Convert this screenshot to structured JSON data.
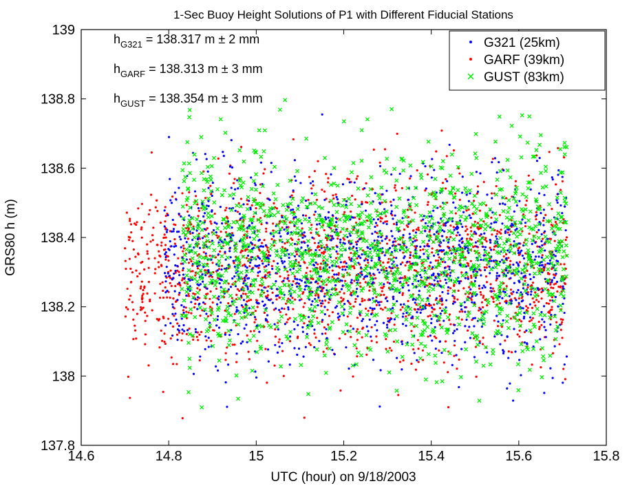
{
  "chart_data": {
    "type": "scatter",
    "title": "1-Sec Buoy Height Solutions of P1 with Different Fiducial Stations",
    "xlabel": "UTC (hour) on 9/18/2003",
    "ylabel": "GRS80 h (m)",
    "xlim": [
      14.6,
      15.8
    ],
    "ylim": [
      137.8,
      139
    ],
    "xticks": [
      14.6,
      14.8,
      15,
      15.2,
      15.4,
      15.6,
      15.8
    ],
    "xtick_labels": [
      "14.6",
      "14.8",
      "15",
      "15.2",
      "15.4",
      "15.6",
      "15.8"
    ],
    "yticks": [
      137.8,
      138,
      138.2,
      138.4,
      138.6,
      138.8,
      139
    ],
    "ytick_labels": [
      "137.8",
      "138",
      "138.2",
      "138.4",
      "138.6",
      "138.8",
      "139"
    ],
    "grid": false,
    "legend_position": "top-right",
    "series": [
      {
        "name": "G321 (25km)",
        "color": "#0000ff",
        "marker": "dot",
        "time_range": [
          14.79,
          15.71
        ],
        "mean_height": 138.317,
        "spread_range": [
          137.85,
          138.78
        ],
        "points_per_second": 1
      },
      {
        "name": "GARF (39km)",
        "color": "#ff0000",
        "marker": "dot",
        "time_range": [
          14.7,
          15.71
        ],
        "mean_height": 138.313,
        "spread_range": [
          137.85,
          138.77
        ],
        "points_per_second": 1
      },
      {
        "name": "GUST (83km)",
        "color": "#00ee00",
        "marker": "x",
        "time_range": [
          14.83,
          15.71
        ],
        "mean_height": 138.354,
        "spread_range": [
          137.87,
          138.87
        ],
        "points_per_second": 1
      }
    ],
    "annotations": [
      {
        "main": "h",
        "sub": "G321",
        "rest": " = 138.317 m ± 2 mm"
      },
      {
        "main": "h",
        "sub": "GARF",
        "rest": " = 138.313 m ± 3 mm"
      },
      {
        "main": "h",
        "sub": "GUST",
        "rest": " = 138.354 m ± 3 mm"
      }
    ]
  }
}
